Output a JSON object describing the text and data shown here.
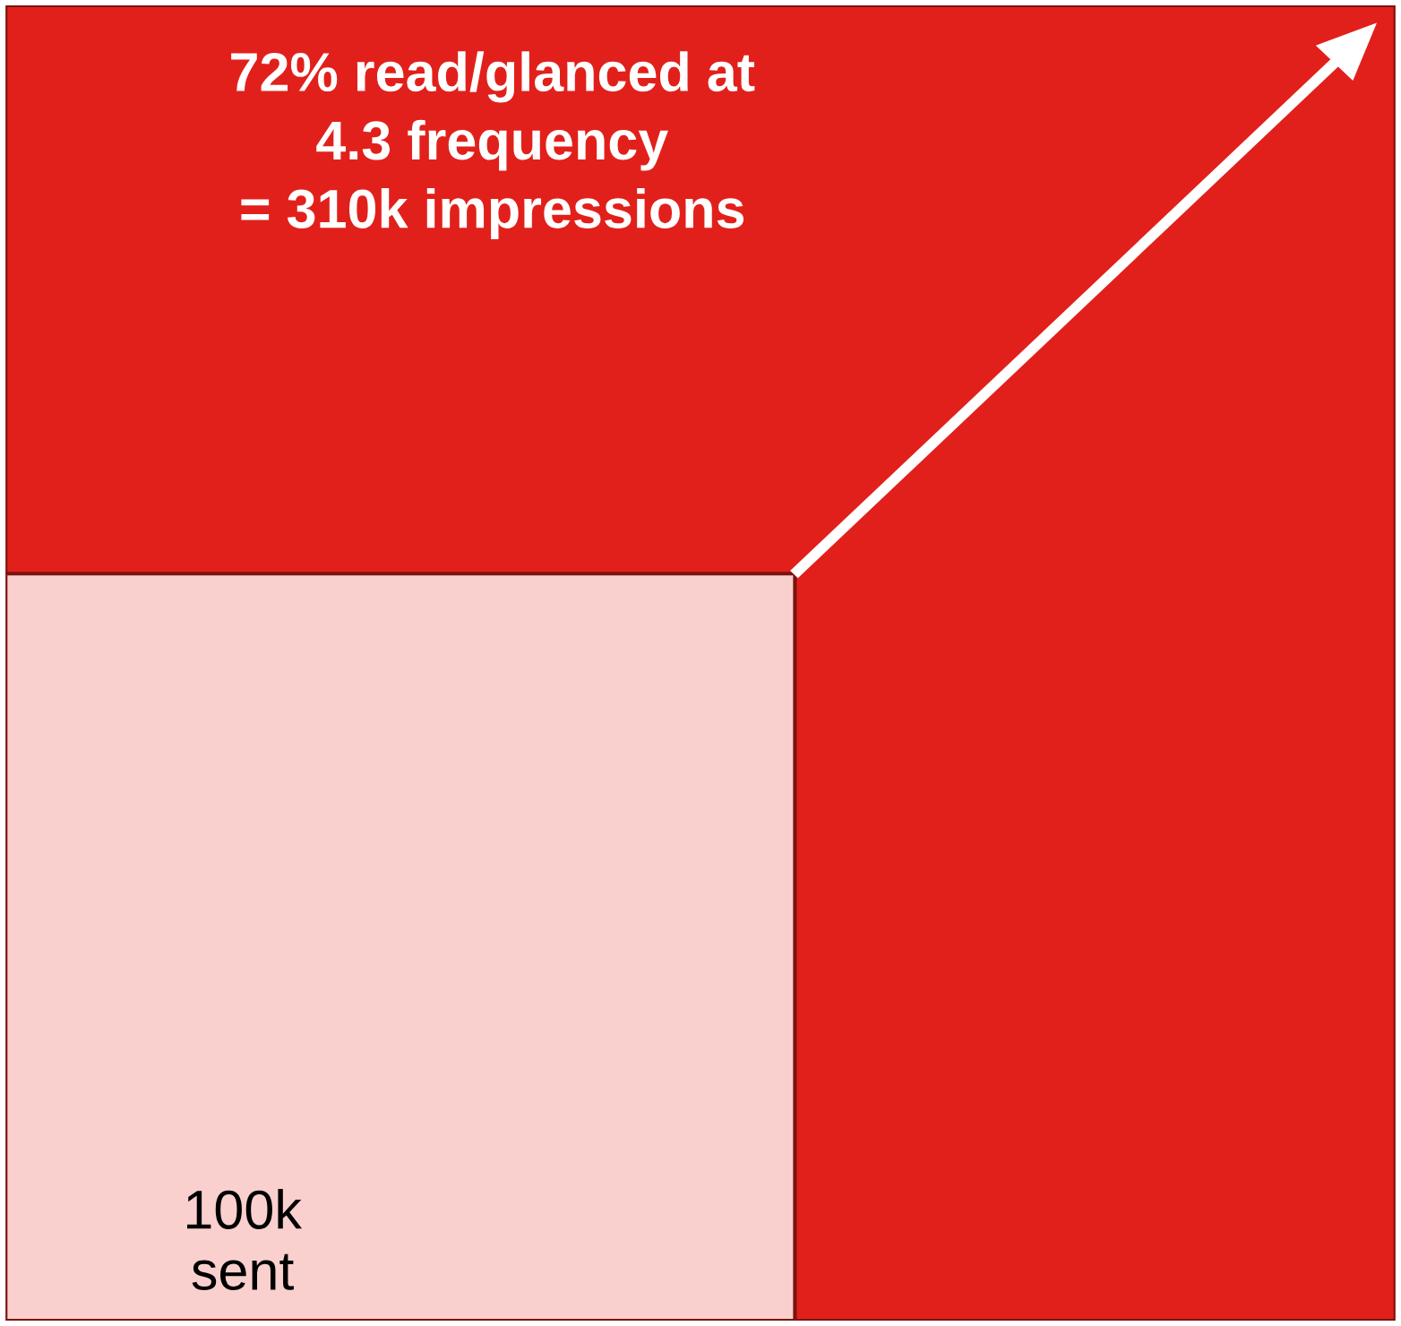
{
  "chart_data": {
    "type": "other",
    "categories": [
      "sent",
      "impressions"
    ],
    "values": [
      100000,
      310000
    ],
    "value_labels": [
      "100k",
      "310k"
    ],
    "annotations": [
      "72% read/glanced at\n4.3 frequency\n="
    ],
    "colors": [
      "#f9d0cd",
      "#e2201b"
    ]
  }
}
